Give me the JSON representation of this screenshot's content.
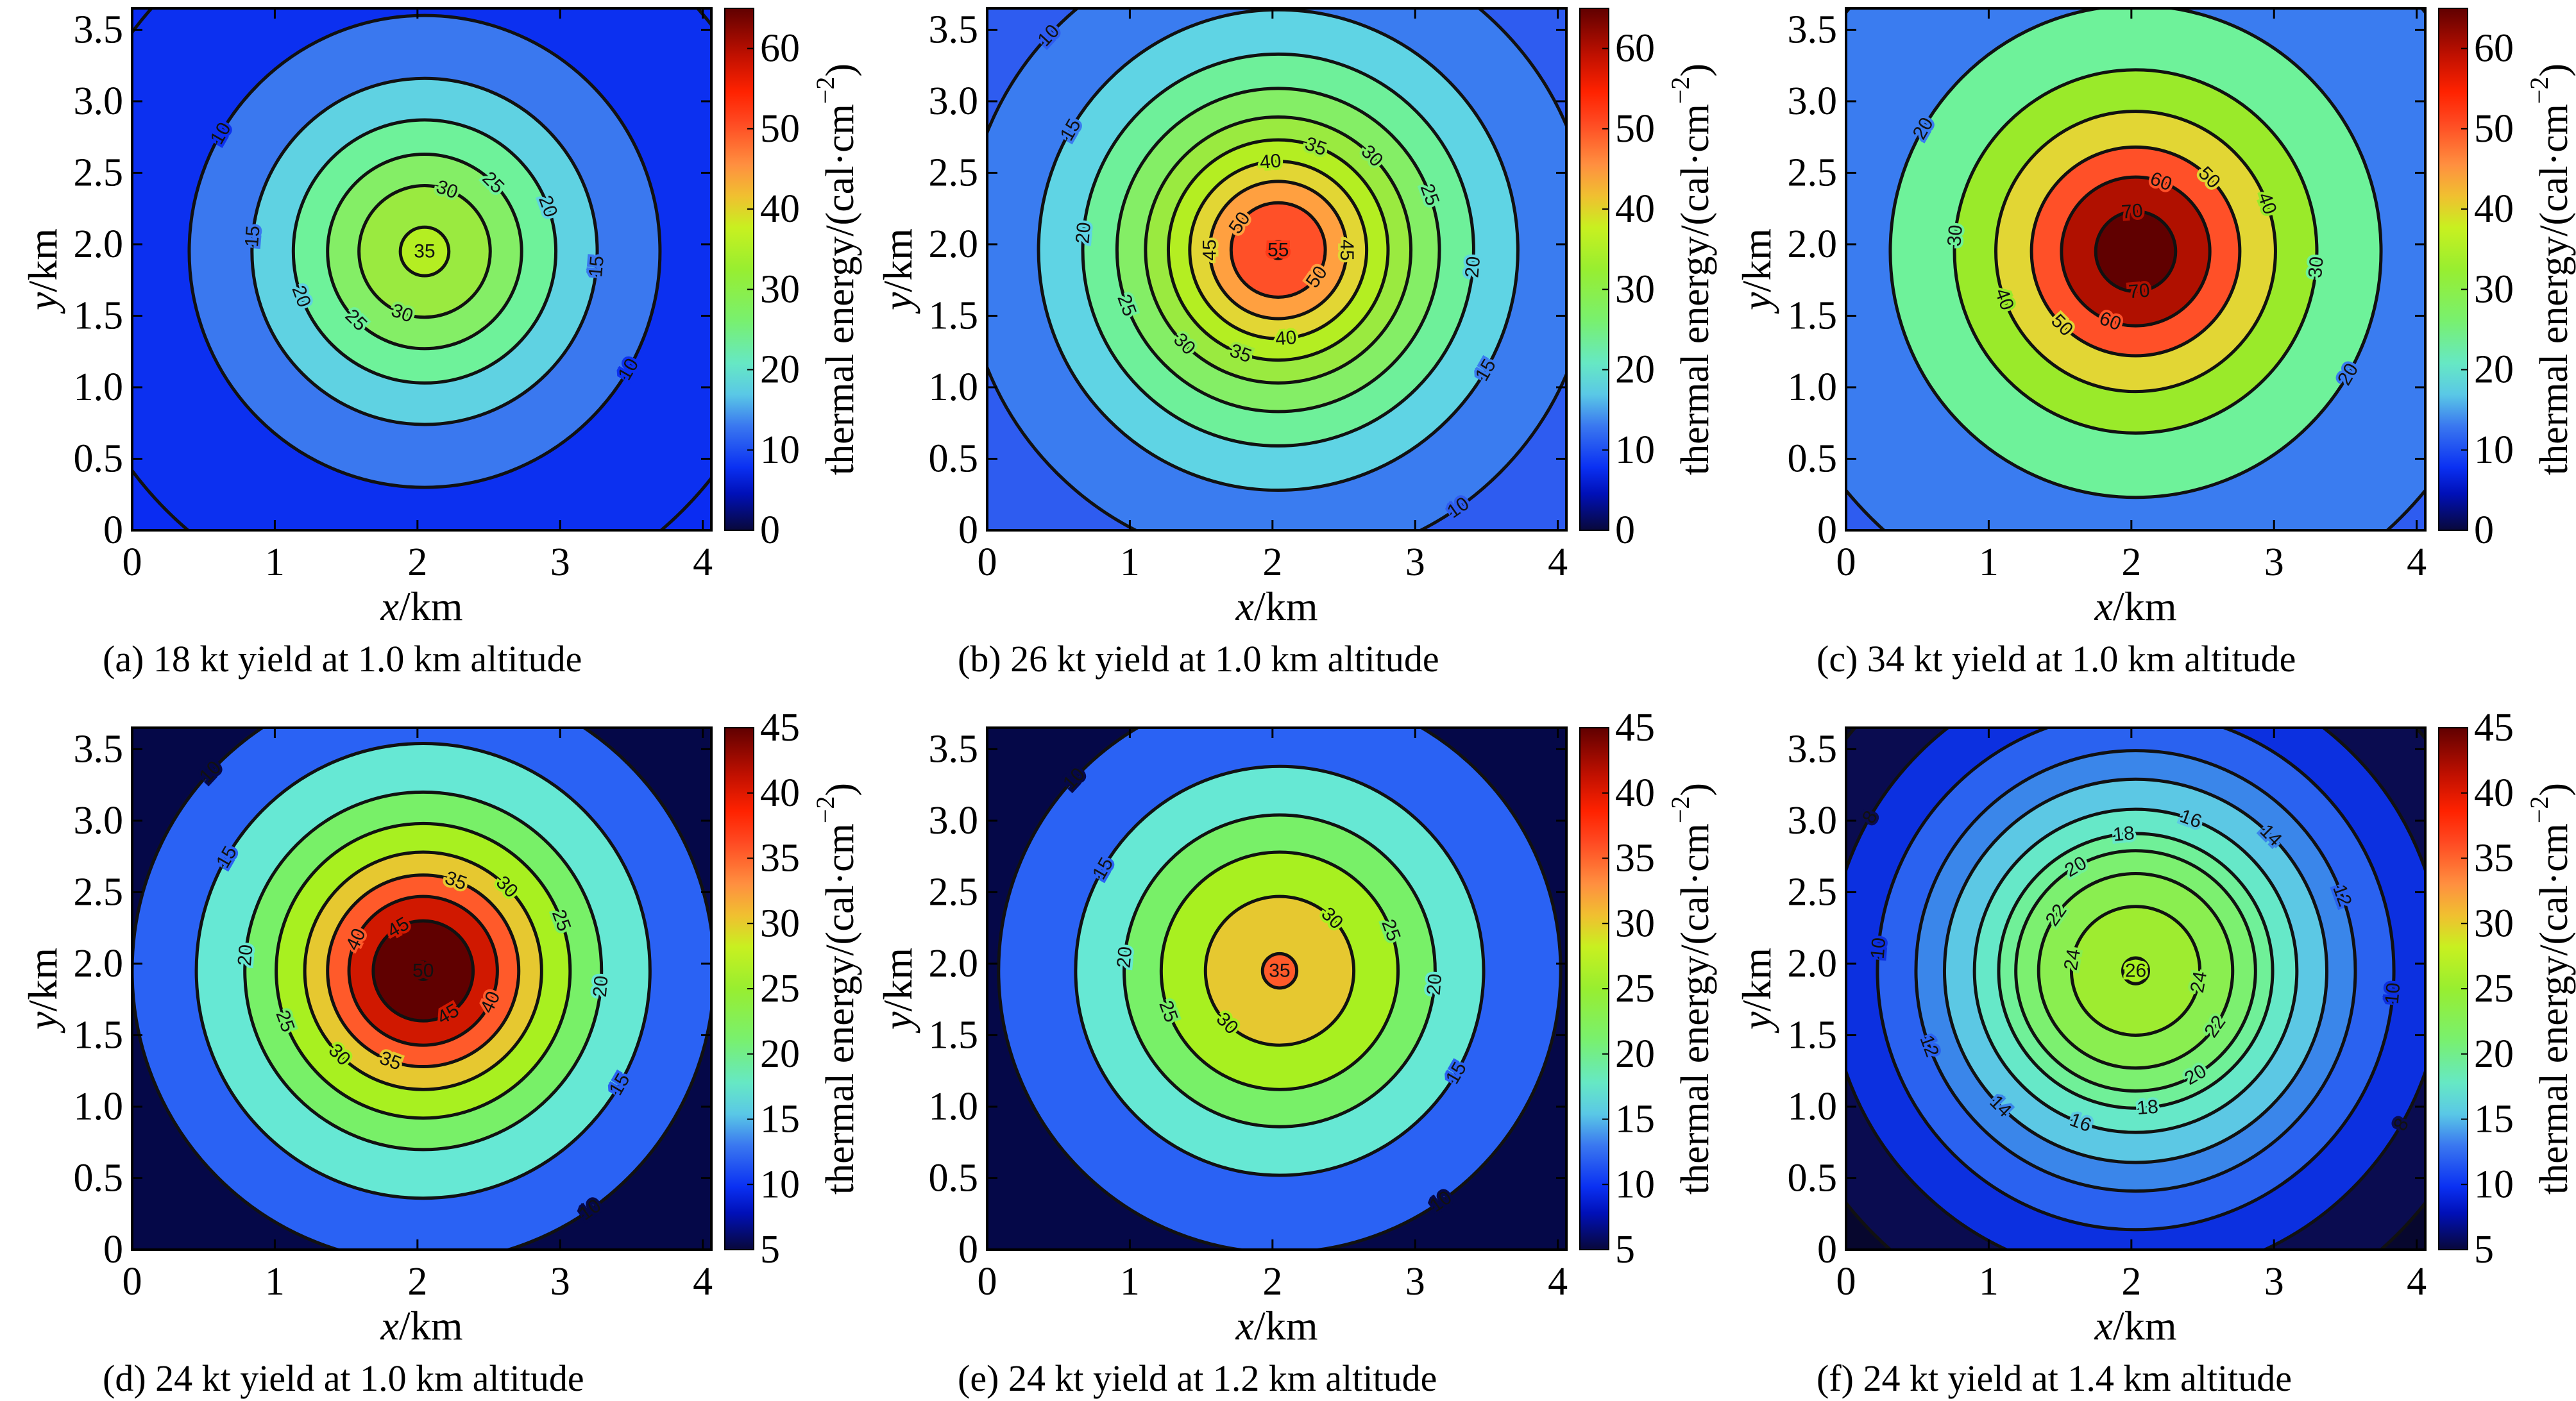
{
  "colormap": [
    [
      0.0,
      "#08083a"
    ],
    [
      0.07,
      "#0010b8"
    ],
    [
      0.12,
      "#0a30f2"
    ],
    [
      0.2,
      "#3a78f0"
    ],
    [
      0.26,
      "#5ac8e6"
    ],
    [
      0.32,
      "#66e8c4"
    ],
    [
      0.4,
      "#78f070"
    ],
    [
      0.5,
      "#98ee30"
    ],
    [
      0.58,
      "#c8f020"
    ],
    [
      0.64,
      "#f0c030"
    ],
    [
      0.7,
      "#ff9040"
    ],
    [
      0.78,
      "#ff4a22"
    ],
    [
      0.84,
      "#ff2200"
    ],
    [
      0.91,
      "#c01000"
    ],
    [
      1.0,
      "#600000"
    ]
  ],
  "chart_data": [
    {
      "type": "contour",
      "panel": "a",
      "caption": "(a) 18 kt yield at 1.0 km altitude",
      "xlabel_var": "x",
      "xlabel_unit": "/km",
      "ylabel_var": "y",
      "ylabel_unit": "/km",
      "xlim": [
        0,
        4.06
      ],
      "ylim": [
        0,
        3.65
      ],
      "xticks": [
        "0",
        "1",
        "2",
        "3",
        "4"
      ],
      "yticks": [
        "0",
        "0.5",
        "1.0",
        "1.5",
        "2.0",
        "2.5",
        "3.0",
        "3.5"
      ],
      "center_km": [
        2.05,
        1.95
      ],
      "contours": [
        {
          "level": "5",
          "radius_km": 2.56
        },
        {
          "level": "10",
          "radius_km": 1.65
        },
        {
          "level": "15",
          "radius_km": 1.21
        },
        {
          "level": "20",
          "radius_km": 0.92
        },
        {
          "level": "25",
          "radius_km": 0.68
        },
        {
          "level": "30",
          "radius_km": 0.46
        },
        {
          "level": "35",
          "radius_km": 0.17
        }
      ],
      "band_colors": [
        "#0a2cf2",
        "#0c30f0",
        "#3a78ef",
        "#5fd2e2",
        "#6ef29a",
        "#84ee66",
        "#9aea40",
        "#b4ee22"
      ],
      "colorbar": {
        "label_main": "thermal energy/(cal·cm",
        "label_sup": "−2",
        "label_end": ")",
        "range": [
          0,
          65
        ],
        "ticks": [
          "0",
          "10",
          "20",
          "30",
          "40",
          "50",
          "60"
        ]
      }
    },
    {
      "type": "contour",
      "panel": "b",
      "caption": "(b) 26 kt yield at 1.0 km altitude",
      "xlabel_var": "x",
      "xlabel_unit": "/km",
      "ylabel_var": "y",
      "ylabel_unit": "/km",
      "xlim": [
        0,
        4.06
      ],
      "ylim": [
        0,
        3.65
      ],
      "xticks": [
        "0",
        "1",
        "2",
        "3",
        "4"
      ],
      "yticks": [
        "0",
        "0.5",
        "1.0",
        "1.5",
        "2.0",
        "2.5",
        "3.0",
        "3.5"
      ],
      "center_km": [
        2.04,
        1.96
      ],
      "contours": [
        {
          "level": "10",
          "radius_km": 2.2
        },
        {
          "level": "15",
          "radius_km": 1.68
        },
        {
          "level": "20",
          "radius_km": 1.37
        },
        {
          "level": "25",
          "radius_km": 1.13
        },
        {
          "level": "30",
          "radius_km": 0.93
        },
        {
          "level": "35",
          "radius_km": 0.77
        },
        {
          "level": "40",
          "radius_km": 0.62
        },
        {
          "level": "45",
          "radius_km": 0.48
        },
        {
          "level": "50",
          "radius_km": 0.33
        },
        {
          "level": "55",
          "radius_km": 0.06
        }
      ],
      "band_colors": [
        "#2e5cf0",
        "#3a7cf0",
        "#5fd4e4",
        "#6ef09a",
        "#84ee66",
        "#9aea40",
        "#b4ee22",
        "#e2d634",
        "#ffa040",
        "#ff5028",
        "#ff3a18"
      ],
      "colorbar": {
        "label_main": "thermal energy/(cal·cm",
        "label_sup": "−2",
        "label_end": ")",
        "range": [
          0,
          65
        ],
        "ticks": [
          "0",
          "10",
          "20",
          "30",
          "40",
          "50",
          "60"
        ]
      }
    },
    {
      "type": "contour",
      "panel": "c",
      "caption": "(c) 34 kt yield at 1.0 km altitude",
      "xlabel_var": "x",
      "xlabel_unit": "/km",
      "ylabel_var": "y",
      "ylabel_unit": "/km",
      "xlim": [
        0,
        4.06
      ],
      "ylim": [
        0,
        3.65
      ],
      "xticks": [
        "0",
        "1",
        "2",
        "3",
        "4"
      ],
      "yticks": [
        "0",
        "0.5",
        "1.0",
        "1.5",
        "2.0",
        "2.5",
        "3.0",
        "3.5"
      ],
      "center_km": [
        2.03,
        1.95
      ],
      "contours": [
        {
          "level": "10",
          "radius_km": 2.63
        },
        {
          "level": "20",
          "radius_km": 1.72
        },
        {
          "level": "30",
          "radius_km": 1.27
        },
        {
          "level": "40",
          "radius_km": 0.98
        },
        {
          "level": "50",
          "radius_km": 0.73
        },
        {
          "level": "60",
          "radius_km": 0.52
        },
        {
          "level": "70",
          "radius_km": 0.28
        }
      ],
      "band_colors": [
        "#2e5cf0",
        "#3a7cf0",
        "#6ef29a",
        "#9aea2a",
        "#e2d634",
        "#ff5028",
        "#b01000",
        "#600000"
      ],
      "colorbar": {
        "label_main": "thermal energy/(cal·cm",
        "label_sup": "−2",
        "label_end": ")",
        "range": [
          0,
          65
        ],
        "ticks": [
          "0",
          "10",
          "20",
          "30",
          "40",
          "50",
          "60"
        ]
      }
    },
    {
      "type": "contour",
      "panel": "d",
      "caption": "(d) 24 kt yield at 1.0 km altitude",
      "xlabel_var": "x",
      "xlabel_unit": "/km",
      "ylabel_var": "y",
      "ylabel_unit": "/km",
      "xlim": [
        0,
        4.06
      ],
      "ylim": [
        0,
        3.65
      ],
      "xticks": [
        "0",
        "1",
        "2",
        "3",
        "4"
      ],
      "yticks": [
        "0",
        "0.5",
        "1.0",
        "1.5",
        "2.0",
        "2.5",
        "3.0",
        "3.5"
      ],
      "center_km": [
        2.04,
        1.95
      ],
      "contours": [
        {
          "level": "10",
          "radius_km": 2.04
        },
        {
          "level": "15",
          "radius_km": 1.59
        },
        {
          "level": "20",
          "radius_km": 1.25
        },
        {
          "level": "25",
          "radius_km": 1.03
        },
        {
          "level": "30",
          "radius_km": 0.83
        },
        {
          "level": "35",
          "radius_km": 0.67
        },
        {
          "level": "40",
          "radius_km": 0.52
        },
        {
          "level": "45",
          "radius_km": 0.35
        },
        {
          "level": "50",
          "radius_km": 0.06
        }
      ],
      "band_colors": [
        "#050848",
        "#2a62f4",
        "#66e8d4",
        "#78f068",
        "#a8f020",
        "#e6c830",
        "#ff5a2a",
        "#d01800",
        "#600000",
        "#600000"
      ],
      "colorbar": {
        "label_main": "thermal energy/(cal·cm",
        "label_sup": "−2",
        "label_end": ")",
        "range": [
          5,
          45
        ],
        "ticks": [
          "5",
          "10",
          "15",
          "20",
          "25",
          "30",
          "35",
          "40",
          "45"
        ]
      }
    },
    {
      "type": "contour",
      "panel": "e",
      "caption": "(e) 24 kt yield at 1.2 km altitude",
      "xlabel_var": "x",
      "xlabel_unit": "/km",
      "ylabel_var": "y",
      "ylabel_unit": "/km",
      "xlim": [
        0,
        4.06
      ],
      "ylim": [
        0,
        3.65
      ],
      "xticks": [
        "0",
        "1",
        "2",
        "3",
        "4"
      ],
      "yticks": [
        "0",
        "0.5",
        "1.0",
        "1.5",
        "2.0",
        "2.5",
        "3.0",
        "3.5"
      ],
      "center_km": [
        2.05,
        1.95
      ],
      "contours": [
        {
          "level": "10",
          "radius_km": 1.97
        },
        {
          "level": "15",
          "radius_km": 1.43
        },
        {
          "level": "20",
          "radius_km": 1.09
        },
        {
          "level": "25",
          "radius_km": 0.83
        },
        {
          "level": "30",
          "radius_km": 0.52
        },
        {
          "level": "35",
          "radius_km": 0.12
        }
      ],
      "band_colors": [
        "#050848",
        "#2a62f4",
        "#66e8d4",
        "#78f068",
        "#a8f020",
        "#e6c830",
        "#ff5a2a"
      ],
      "colorbar": {
        "label_main": "thermal energy/(cal·cm",
        "label_sup": "−2",
        "label_end": ")",
        "range": [
          5,
          45
        ],
        "ticks": [
          "5",
          "10",
          "15",
          "20",
          "25",
          "30",
          "35",
          "40",
          "45"
        ]
      }
    },
    {
      "type": "contour",
      "panel": "f",
      "caption": "(f) 24 kt yield at 1.4 km altitude",
      "xlabel_var": "x",
      "xlabel_unit": "/km",
      "ylabel_var": "y",
      "ylabel_unit": "/km",
      "xlim": [
        0,
        4.06
      ],
      "ylim": [
        0,
        3.65
      ],
      "xticks": [
        "0",
        "1",
        "2",
        "3",
        "4"
      ],
      "yticks": [
        "0",
        "0.5",
        "1.0",
        "1.5",
        "2.0",
        "2.5",
        "3.0",
        "3.5"
      ],
      "center_km": [
        2.03,
        1.95
      ],
      "contours": [
        {
          "level": "6",
          "radius_km": 2.6
        },
        {
          "level": "8",
          "radius_km": 2.15
        },
        {
          "level": "10",
          "radius_km": 1.81
        },
        {
          "level": "12",
          "radius_km": 1.54
        },
        {
          "level": "14",
          "radius_km": 1.34
        },
        {
          "level": "16",
          "radius_km": 1.13
        },
        {
          "level": "18",
          "radius_km": 0.96
        },
        {
          "level": "20",
          "radius_km": 0.84
        },
        {
          "level": "22",
          "radius_km": 0.68
        },
        {
          "level": "24",
          "radius_km": 0.45
        },
        {
          "level": "26",
          "radius_km": 0.09
        }
      ],
      "band_colors": [
        "#07072e",
        "#0a0c50",
        "#0c30e0",
        "#2a62f0",
        "#3a86ea",
        "#5cc8e4",
        "#66e8c8",
        "#70f098",
        "#7cf070",
        "#8aee50",
        "#9eec30",
        "#a8f020"
      ],
      "colorbar": {
        "label_main": "thermal energy/(cal·cm",
        "label_sup": "−2",
        "label_end": ")",
        "range": [
          5,
          45
        ],
        "ticks": [
          "5",
          "10",
          "15",
          "20",
          "25",
          "30",
          "35",
          "40",
          "45"
        ]
      }
    }
  ]
}
